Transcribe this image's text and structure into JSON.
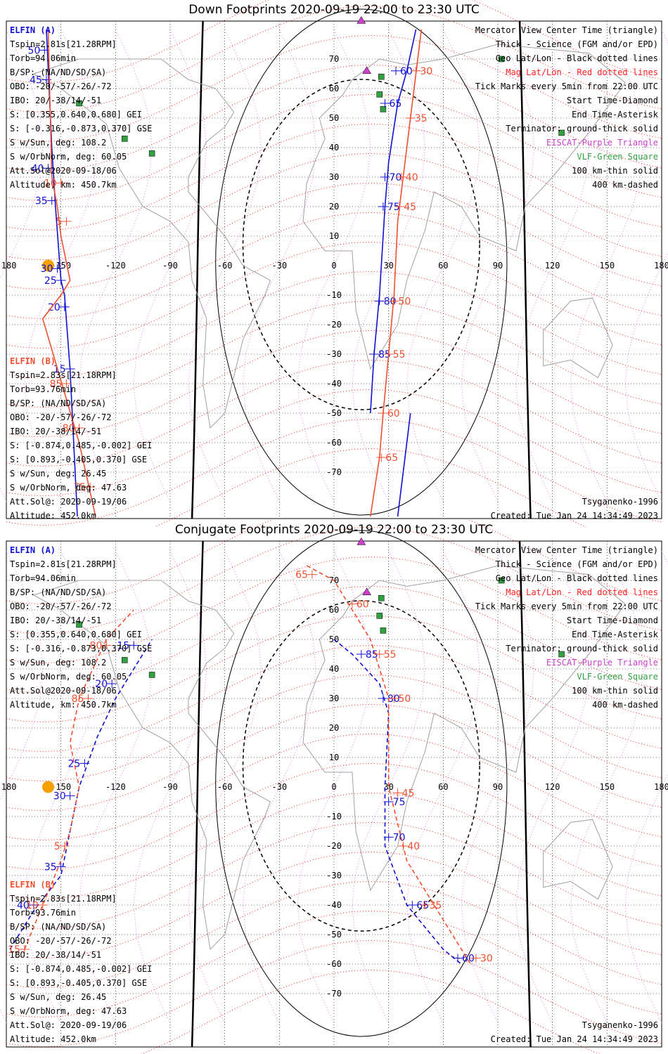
{
  "colors": {
    "elfin_a": "#1010d0",
    "elfin_b": "#f05030",
    "geo_grid": "#000000",
    "mag_grid": "#ff2020",
    "escat": "#cc40cc",
    "vlf": "#30a040",
    "coast": "#a0a0a0"
  },
  "panels": [
    {
      "title": "Down Footprints 2020-09-19 22:00 to 23:30 UTC",
      "elfin_a": {
        "name": "ELFIN (A)",
        "lines": [
          "Tspin=2.81s[21.28RPM]",
          "Torb=94.06min",
          "B/SP: (NA/ND/SD/SA)",
          "OBO: -20/-57/-26/-72",
          "IBO: 20/-38/14/-51",
          "S: [0.355,0.640,0.680] GEI",
          "S: [-0.316,-0.873,0.370] GSE",
          "S w/Sun, deg: 108.2",
          "S w/OrbNorm, deg: 60.05",
          "Att.Sol@2020-09-18/06",
          "Altitude, km: 450.7km"
        ]
      },
      "elfin_b": {
        "name": "ELFIN (B)",
        "lines": [
          "Tspin=2.83s[21.18RPM]",
          "Torb=93.76min",
          "B/SP: (NA/ND/SD/SA)",
          "OBO: -20/-57/-26/-72",
          "IBO: 20/-38/14/-51",
          "S: [-0.874,0.485,-0.002] GEI",
          "S: [0.893,-0.405,0.370] GSE",
          "S w/Sun, deg: 26.45",
          "S w/OrbNorm, deg: 47.63",
          "Att.Sol@: 2020-09-19/06",
          "Altitude: 452.0km"
        ]
      },
      "legend": [
        "Mercator View Center Time (triangle)",
        "Thick - Science (FGM and/or EPD)",
        "Geo Lat/Lon - Black dotted lines",
        "Mag Lat/Lon - Red dotted lines",
        "Tick Marks every 5min from 22:00 UTC",
        "Start Time-Diamond",
        "End Time-Asterisk",
        "Terminator: ground-thick solid",
        "EISCAT-Purple Triangle",
        "VLF-Green Square",
        "100 km-thin solid",
        "400 km-dashed"
      ],
      "model": "Tsyganenko-1996",
      "created": "Created: Tue Jan 24 14:34:49 2023"
    },
    {
      "title": "Conjugate Footprints 2020-09-19 22:00 to 23:30 UTC",
      "elfin_a": {
        "name": "ELFIN (A)",
        "lines": [
          "Tspin=2.81s[21.28RPM]",
          "Torb=94.06min",
          "B/SP: (NA/ND/SD/SA)",
          "OBO: -20/-57/-26/-72",
          "IBO: 20/-38/14/-51",
          "S: [0.355,0.640,0.680] GEI",
          "S: [-0.316,-0.873,0.370] GSE",
          "S w/Sun, deg: 108.2",
          "S w/OrbNorm, deg: 60.05",
          "Att.Sol@2020-09-18/06",
          "Altitude, km: 450.7km"
        ]
      },
      "elfin_b": {
        "name": "ELFIN (B)",
        "lines": [
          "Tspin=2.83s[21.18RPM]",
          "Torb=93.76min",
          "B/SP: (NA/ND/SD/SA)",
          "OBO: -20/-57/-26/-72",
          "IBO: 20/-38/14/-51",
          "S: [-0.874,0.485,-0.002] GEI",
          "S: [0.893,-0.405,0.370] GSE",
          "S w/Sun, deg: 26.45",
          "S w/OrbNorm, deg: 47.63",
          "Att.Sol@: 2020-09-19/06",
          "Altitude: 452.0km"
        ]
      },
      "legend": [
        "Mercator View Center Time (triangle)",
        "Thick - Science (FGM and/or EPD)",
        "Geo Lat/Lon - Black dotted lines",
        "Mag Lat/Lon - Red dotted lines",
        "Tick Marks every 5min from 22:00 UTC",
        "Start Time-Diamond",
        "End Time-Asterisk",
        "Terminator: ground-thick solid",
        "EISCAT-Purple Triangle",
        "VLF-Green Square",
        "100 km-thin solid",
        "400 km-dashed"
      ],
      "model": "Tsyganenko-1996",
      "created": "Created: Tue Jan 24 14:34:49 2023"
    }
  ],
  "chart_data": [
    {
      "type": "scatter",
      "title": "Down Footprints 2020-09-19 22:00 to 23:30 UTC",
      "xlim": [
        -180,
        180
      ],
      "ylim": [
        -80,
        80
      ],
      "x_ticks": [
        -180,
        -150,
        -120,
        -90,
        -60,
        -30,
        0,
        30,
        60,
        90,
        120,
        150,
        180
      ],
      "y_ticks": [
        -70,
        -60,
        -50,
        -40,
        -30,
        -20,
        -10,
        10,
        20,
        30,
        40,
        50,
        60,
        70
      ],
      "series": [
        {
          "name": "ELFIN (A)",
          "color": "#1010d0",
          "dashed": false,
          "points": [
            [
              -141,
              -85
            ],
            [
              -143,
              -60
            ],
            [
              -145,
              -35
            ],
            [
              -148,
              -10
            ],
            [
              -150,
              -5
            ],
            [
              -153,
              20
            ],
            [
              -155,
              40
            ],
            [
              -158,
              80
            ]
          ],
          "ticks": [
            [
              -145,
              -35,
              "15"
            ],
            [
              -148,
              -14,
              "20"
            ],
            [
              -150,
              -5,
              "25"
            ],
            [
              -152,
              -1,
              "30"
            ],
            [
              -155,
              22,
              "35"
            ],
            [
              -157,
              33,
              "40"
            ],
            [
              -158,
              63,
              "45"
            ],
            [
              -159,
              73,
              "50"
            ]
          ]
        },
        {
          "name": "ELFIN (A) track 2",
          "color": "#1010d0",
          "dashed": false,
          "points": [
            [
              35,
              -85
            ],
            [
              40,
              -60
            ],
            [
              42,
              -50
            ]
          ],
          "ticks": []
        },
        {
          "name": "ELFIN (A) track 3",
          "color": "#1010d0",
          "dashed": false,
          "points": [
            [
              20,
              -50
            ],
            [
              22,
              -30
            ],
            [
              25,
              -10
            ],
            [
              28,
              20
            ],
            [
              30,
              35
            ],
            [
              35,
              55
            ],
            [
              40,
              66
            ],
            [
              45,
              80
            ]
          ],
          "ticks": [
            [
              22,
              -30,
              "85"
            ],
            [
              25,
              -12,
              "80"
            ],
            [
              27,
              20,
              "75"
            ],
            [
              28,
              30,
              "70"
            ],
            [
              28,
              55,
              "65"
            ],
            [
              34,
              66,
              "60"
            ]
          ]
        },
        {
          "name": "ELFIN (B)",
          "color": "#f05030",
          "dashed": false,
          "points": [
            [
              -131,
              -85
            ],
            [
              -140,
              -60
            ],
            [
              -160,
              -18
            ],
            [
              -150,
              -10
            ],
            [
              -145,
              -5
            ],
            [
              -150,
              10
            ],
            [
              -152,
              20
            ],
            [
              -155,
              30
            ],
            [
              -157,
              80
            ]
          ],
          "ticks": [
            [
              -134,
              -75,
              "75"
            ],
            [
              -140,
              -55,
              "80"
            ],
            [
              -147,
              -40,
              "85"
            ],
            [
              -147,
              15,
              "5"
            ],
            [
              -150,
              28,
              "10"
            ]
          ]
        },
        {
          "name": "ELFIN (B) track 2",
          "color": "#f05030",
          "dashed": false,
          "points": [
            [
              20,
              -85
            ],
            [
              25,
              -65
            ],
            [
              27,
              -50
            ],
            [
              30,
              -30
            ],
            [
              33,
              -10
            ],
            [
              35,
              15
            ],
            [
              38,
              30
            ],
            [
              42,
              50
            ],
            [
              45,
              65
            ],
            [
              48,
              80
            ]
          ],
          "ticks": [
            [
              26,
              -65,
              "65"
            ],
            [
              27,
              -50,
              "60"
            ],
            [
              30,
              -30,
              "55"
            ],
            [
              33,
              -12,
              "50"
            ],
            [
              36,
              20,
              "45"
            ],
            [
              37,
              30,
              "40"
            ],
            [
              42,
              50,
              "35"
            ],
            [
              45,
              66,
              "30"
            ]
          ]
        }
      ]
    },
    {
      "type": "scatter",
      "title": "Conjugate Footprints 2020-09-19 22:00 to 23:30 UTC",
      "xlim": [
        -180,
        180
      ],
      "ylim": [
        -80,
        80
      ],
      "x_ticks": [
        -180,
        -150,
        -120,
        -90,
        -60,
        -30,
        0,
        30,
        60,
        90,
        120,
        150,
        180
      ],
      "y_ticks": [
        -70,
        -60,
        -50,
        -40,
        -30,
        -20,
        -10,
        10,
        20,
        30,
        40,
        50,
        60,
        70
      ],
      "series": [
        {
          "name": "ELFIN (A)",
          "color": "#1010d0",
          "dashed": true,
          "points": [
            [
              -178,
              -55
            ],
            [
              -165,
              -42
            ],
            [
              -150,
              -30
            ],
            [
              -145,
              -15
            ],
            [
              -140,
              0
            ],
            [
              -130,
              17
            ],
            [
              -120,
              30
            ],
            [
              -100,
              50
            ]
          ],
          "ticks": [
            [
              -165,
              -40,
              "40"
            ],
            [
              -150,
              -27,
              "35"
            ],
            [
              -145,
              -3,
              "30"
            ],
            [
              -137,
              8,
              "25"
            ],
            [
              -122,
              35,
              "20"
            ],
            [
              -110,
              48,
              "15"
            ]
          ]
        },
        {
          "name": "ELFIN (A) track 2",
          "color": "#1010d0",
          "dashed": true,
          "points": [
            [
              0,
              50
            ],
            [
              10,
              45
            ],
            [
              25,
              35
            ],
            [
              30,
              25
            ],
            [
              28,
              0
            ],
            [
              28,
              -20
            ],
            [
              40,
              -40
            ],
            [
              60,
              -55
            ],
            [
              70,
              -60
            ]
          ],
          "ticks": [
            [
              15,
              45,
              "85"
            ],
            [
              27,
              30,
              "80"
            ],
            [
              30,
              -5,
              "75"
            ],
            [
              30,
              -17,
              "70"
            ],
            [
              43,
              -40,
              "65"
            ],
            [
              68,
              -58,
              "60"
            ]
          ]
        },
        {
          "name": "ELFIN (B)",
          "color": "#f05030",
          "dashed": true,
          "points": [
            [
              -170,
              -55
            ],
            [
              -160,
              -40
            ],
            [
              -150,
              -25
            ],
            [
              -145,
              -15
            ],
            [
              -140,
              0
            ],
            [
              -145,
              15
            ],
            [
              -140,
              30
            ],
            [
              -125,
              50
            ],
            [
              -110,
              60
            ]
          ],
          "ticks": [
            [
              -160,
              -40,
              "10"
            ],
            [
              -148,
              -20,
              "5"
            ],
            [
              -135,
              30,
              "85"
            ],
            [
              -125,
              48,
              "80"
            ],
            [
              -170,
              -55,
              "15"
            ]
          ]
        },
        {
          "name": "ELFIN (B) track 2",
          "color": "#f05030",
          "dashed": true,
          "points": [
            [
              -15,
              75
            ],
            [
              0,
              70
            ],
            [
              10,
              60
            ],
            [
              20,
              50
            ],
            [
              30,
              30
            ],
            [
              30,
              0
            ],
            [
              40,
              -25
            ],
            [
              60,
              -45
            ],
            [
              75,
              -60
            ]
          ],
          "ticks": [
            [
              -12,
              72,
              "65"
            ],
            [
              10,
              62,
              "60"
            ],
            [
              25,
              45,
              "55"
            ],
            [
              33,
              30,
              "50"
            ],
            [
              35,
              -2,
              "45"
            ],
            [
              38,
              -20,
              "40"
            ],
            [
              50,
              -40,
              "35"
            ],
            [
              78,
              -58,
              "30"
            ]
          ]
        }
      ]
    }
  ]
}
